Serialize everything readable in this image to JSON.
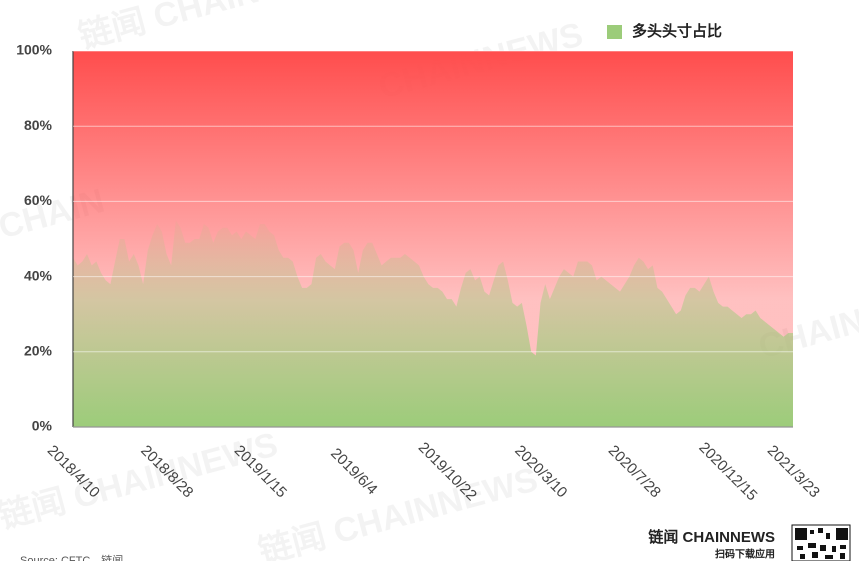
{
  "chart_data": {
    "type": "area",
    "legend": "多头头寸占比",
    "color": "#9ccc7a",
    "above_color": "#ff4d4d",
    "legend_position": "top-right",
    "grid": true,
    "ylim": [
      0,
      100
    ],
    "yticks": [
      {
        "value": 0,
        "label": "0%"
      },
      {
        "value": 20,
        "label": "20%"
      },
      {
        "value": 40,
        "label": "40%"
      },
      {
        "value": 60,
        "label": "60%"
      },
      {
        "value": 80,
        "label": "80%"
      },
      {
        "value": 100,
        "label": "100%"
      }
    ],
    "categories": [
      "2018/4/10",
      null,
      null,
      null,
      null,
      null,
      null,
      null,
      null,
      null,
      null,
      null,
      null,
      null,
      null,
      null,
      null,
      null,
      null,
      null,
      "2018/8/28",
      null,
      null,
      null,
      null,
      null,
      null,
      null,
      null,
      null,
      null,
      null,
      null,
      null,
      null,
      null,
      null,
      null,
      null,
      null,
      "2019/1/15",
      null,
      null,
      null,
      null,
      null,
      null,
      null,
      null,
      null,
      null,
      null,
      null,
      null,
      null,
      null,
      null,
      null,
      null,
      null,
      "2019/6/4",
      null,
      null,
      null,
      null,
      null,
      null,
      null,
      null,
      null,
      null,
      null,
      null,
      null,
      null,
      null,
      null,
      null,
      null,
      null,
      "2019/10/22",
      null,
      null,
      null,
      null,
      null,
      null,
      null,
      null,
      null,
      null,
      null,
      null,
      null,
      null,
      null,
      null,
      null,
      null,
      null,
      "2020/3/10",
      null,
      null,
      null,
      null,
      null,
      null,
      null,
      null,
      null,
      null,
      null,
      null,
      null,
      null,
      null,
      null,
      null,
      null,
      null,
      "2020/7/28",
      null,
      null,
      null,
      null,
      null,
      null,
      null,
      null,
      null,
      null,
      null,
      null,
      null,
      null,
      null,
      null,
      null,
      null,
      null,
      "2020/12/15",
      null,
      null,
      null,
      null,
      null,
      null,
      null,
      null,
      null,
      null,
      null,
      null,
      null,
      "2021/3/23"
    ],
    "values": [
      45,
      43,
      44,
      46,
      43,
      44,
      41,
      39,
      38,
      44,
      50,
      50,
      44,
      46,
      43,
      38,
      47,
      51,
      54,
      52,
      46,
      43,
      55,
      53,
      49,
      49,
      50,
      50,
      54,
      53,
      49,
      52,
      53,
      53,
      51,
      52,
      50,
      52,
      51,
      50,
      54,
      54,
      52,
      51,
      47,
      45,
      45,
      44,
      40,
      37,
      37,
      38,
      45,
      46,
      44,
      43,
      42,
      48,
      49,
      49,
      47,
      41,
      47,
      49,
      49,
      46,
      43,
      44,
      45,
      45,
      45,
      46,
      45,
      44,
      43,
      40,
      38,
      37,
      37,
      36,
      34,
      34,
      32,
      37,
      41,
      42,
      39,
      40,
      36,
      35,
      39,
      43,
      44,
      39,
      33,
      32,
      33,
      27,
      20,
      19,
      33,
      38,
      34,
      37,
      40,
      42,
      41,
      40,
      44,
      44,
      44,
      43,
      39,
      40,
      39,
      38,
      37,
      36,
      38,
      40,
      43,
      45,
      44,
      42,
      43,
      37,
      36,
      34,
      32,
      30,
      31,
      35,
      37,
      37,
      36,
      38,
      40,
      36,
      33,
      32,
      32,
      31,
      30,
      29,
      30,
      30,
      31,
      29,
      28,
      27,
      26,
      25,
      24,
      25,
      25
    ],
    "source": "Source: CFTC，链闻",
    "brand": "链闻 CHAINNEWS",
    "brand_sub": "扫码下载应用"
  }
}
